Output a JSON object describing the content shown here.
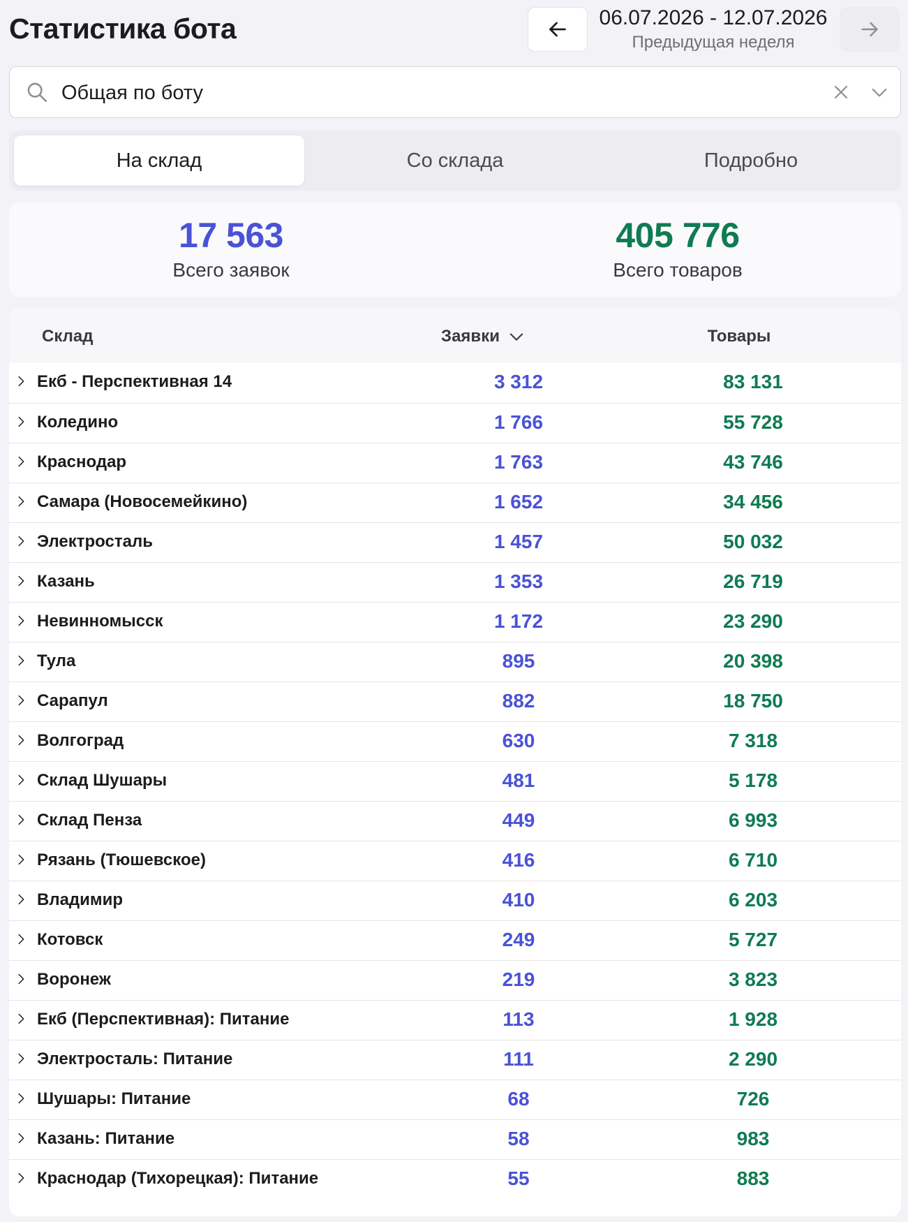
{
  "header": {
    "title": "Статистика бота",
    "date_range": "06.07.2026 - 12.07.2026",
    "period_label": "Предыдущая неделя",
    "prev_icon": "arrow-left-icon",
    "next_icon": "arrow-right-icon"
  },
  "search": {
    "value": "Общая по боту",
    "icon": "search-icon"
  },
  "tabs": [
    {
      "label": "На склад",
      "active": true
    },
    {
      "label": "Со склада",
      "active": false
    },
    {
      "label": "Подробно",
      "active": false
    }
  ],
  "totals": {
    "requests_value": "17 563",
    "requests_label": "Всего заявок",
    "goods_value": "405 776",
    "goods_label": "Всего товаров"
  },
  "table": {
    "col_warehouse": "Склад",
    "col_requests": "Заявки",
    "col_goods": "Товары",
    "rows": [
      {
        "name": "Екб - Перспективная 14",
        "requests": "3 312",
        "goods": "83 131"
      },
      {
        "name": "Коледино",
        "requests": "1 766",
        "goods": "55 728"
      },
      {
        "name": "Краснодар",
        "requests": "1 763",
        "goods": "43 746"
      },
      {
        "name": "Самара (Новосемейкино)",
        "requests": "1 652",
        "goods": "34 456"
      },
      {
        "name": "Электросталь",
        "requests": "1 457",
        "goods": "50 032"
      },
      {
        "name": "Казань",
        "requests": "1 353",
        "goods": "26 719"
      },
      {
        "name": "Невинномысск",
        "requests": "1 172",
        "goods": "23 290"
      },
      {
        "name": "Тула",
        "requests": "895",
        "goods": "20 398"
      },
      {
        "name": "Сарапул",
        "requests": "882",
        "goods": "18 750"
      },
      {
        "name": "Волгоград",
        "requests": "630",
        "goods": "7 318"
      },
      {
        "name": "Склад Шушары",
        "requests": "481",
        "goods": "5 178"
      },
      {
        "name": "Склад Пенза",
        "requests": "449",
        "goods": "6 993"
      },
      {
        "name": "Рязань (Тюшевское)",
        "requests": "416",
        "goods": "6 710"
      },
      {
        "name": "Владимир",
        "requests": "410",
        "goods": "6 203"
      },
      {
        "name": "Котовск",
        "requests": "249",
        "goods": "5 727"
      },
      {
        "name": "Воронеж",
        "requests": "219",
        "goods": "3 823"
      },
      {
        "name": "Екб (Перспективная): Питание",
        "requests": "113",
        "goods": "1 928"
      },
      {
        "name": "Электросталь: Питание",
        "requests": "111",
        "goods": "2 290"
      },
      {
        "name": "Шушары: Питание",
        "requests": "68",
        "goods": "726"
      },
      {
        "name": "Казань: Питание",
        "requests": "58",
        "goods": "983"
      },
      {
        "name": "Краснодар (Тихорецкая): Питание",
        "requests": "55",
        "goods": "883"
      }
    ]
  },
  "colors": {
    "requests": "#4a52d6",
    "goods": "#0f7b52"
  }
}
